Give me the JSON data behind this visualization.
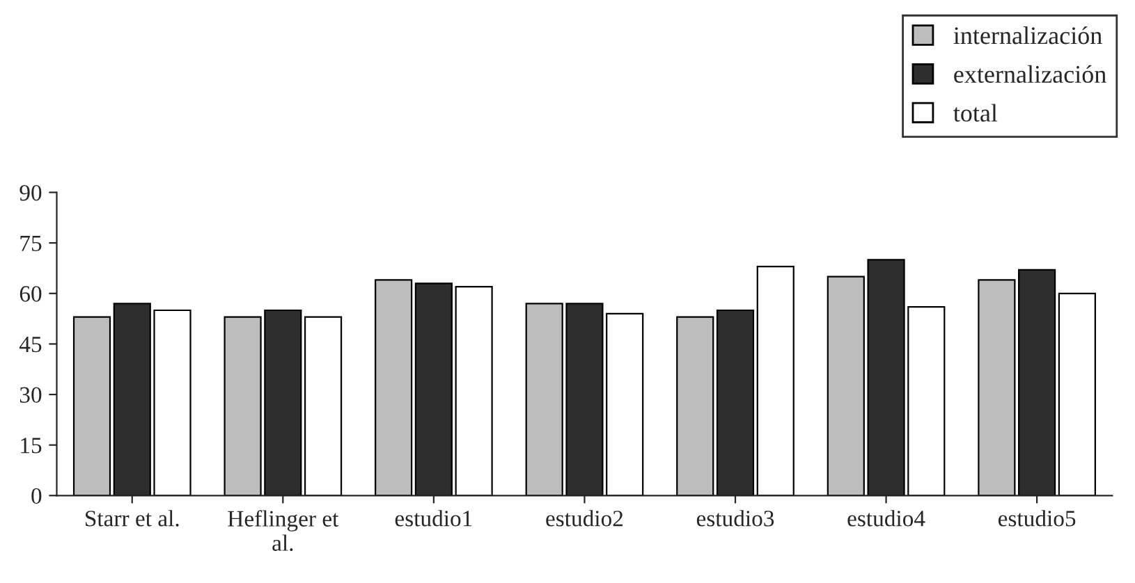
{
  "chart_data": {
    "type": "bar",
    "categories": [
      "Starr et al.",
      "Heflinger et al.",
      "estudio1",
      "estudio2",
      "estudio3",
      "estudio4",
      "estudio5"
    ],
    "series": [
      {
        "name": "internalización",
        "color": "#bdbdbd",
        "values": [
          53,
          53,
          64,
          57,
          53,
          65,
          64
        ]
      },
      {
        "name": "externalización",
        "color": "#2e2e2e",
        "values": [
          57,
          55,
          63,
          57,
          55,
          70,
          67
        ]
      },
      {
        "name": "total",
        "color": "#ffffff",
        "values": [
          55,
          53,
          62,
          54,
          68,
          56,
          60
        ]
      }
    ],
    "ylim": [
      0,
      90
    ],
    "yticks": [
      0,
      15,
      30,
      45,
      60,
      75,
      90
    ],
    "grid": false,
    "legend": "top right"
  }
}
